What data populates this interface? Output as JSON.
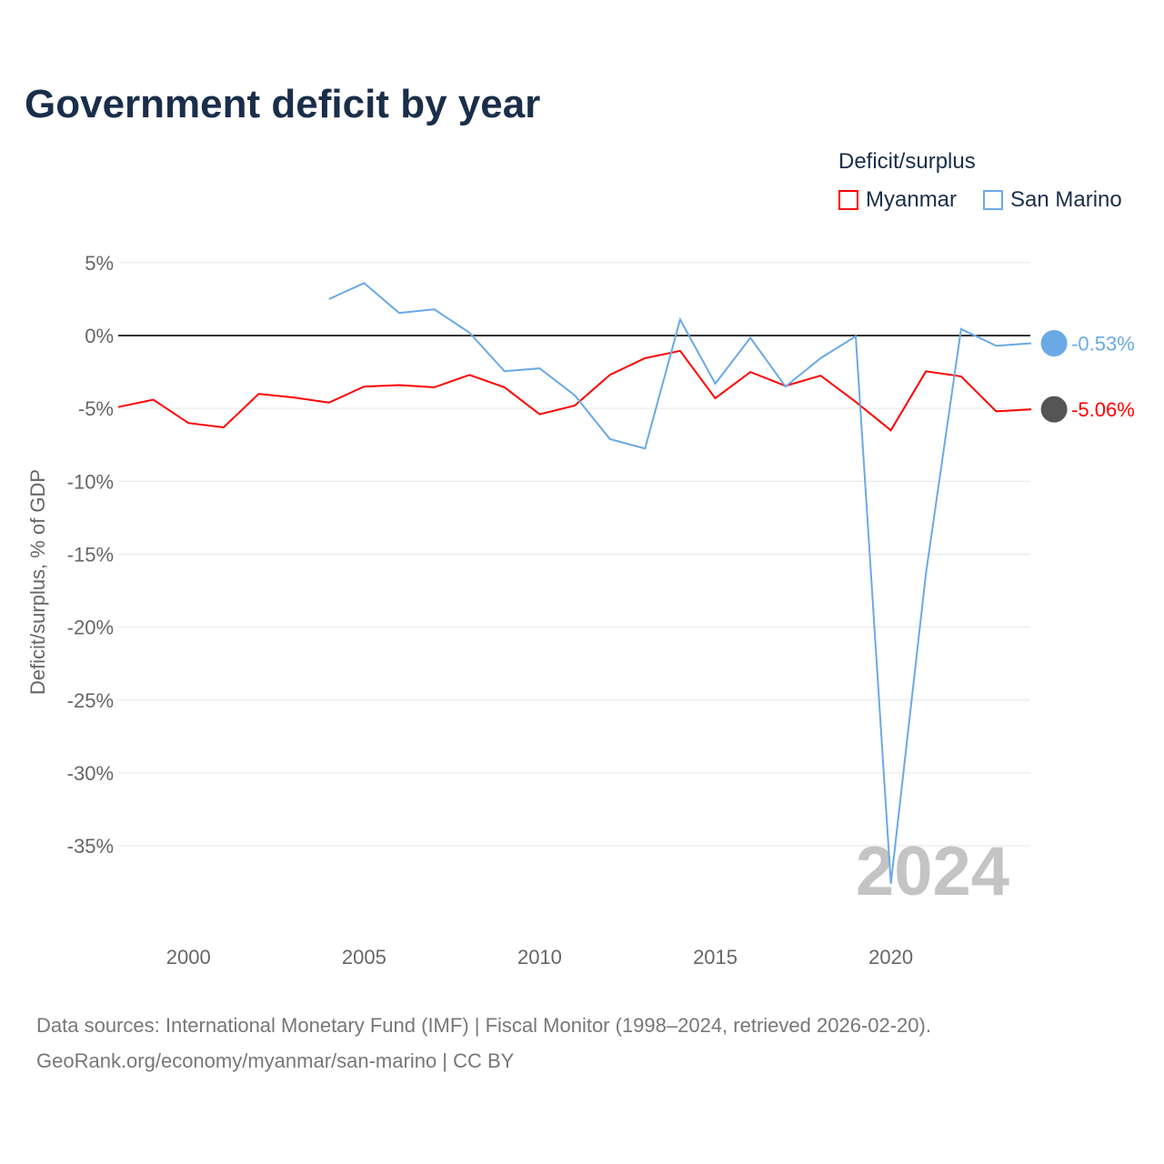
{
  "title": "Government deficit by year",
  "legend": {
    "title": "Deficit/surplus",
    "items": [
      {
        "name": "Myanmar",
        "color": "#ff0000"
      },
      {
        "name": "San Marino",
        "color": "#6aa9e6"
      }
    ]
  },
  "watermark_year": "2024",
  "source_line1": "Data sources: International Monetary Fund (IMF) | Fiscal Monitor (1998–2024, retrieved 2026-02-20).",
  "source_line2": "GeoRank.org/economy/myanmar/san-marino | CC BY",
  "chart_data": {
    "type": "line",
    "title": "Government deficit by year",
    "ylabel": "Deficit/surplus, % of GDP",
    "xlabel": "",
    "xlim": [
      1998,
      2024
    ],
    "ylim": [
      -40,
      6
    ],
    "yticks": [
      5,
      0,
      -5,
      -10,
      -15,
      -20,
      -25,
      -30,
      -35
    ],
    "ytick_labels": [
      "5%",
      "0%",
      "-5%",
      "-10%",
      "-15%",
      "-20%",
      "-25%",
      "-30%",
      "-35%"
    ],
    "xticks": [
      2000,
      2005,
      2010,
      2015,
      2020
    ],
    "grid": true,
    "legend_position": "top-right",
    "series": [
      {
        "name": "Myanmar",
        "color": "#ff0000",
        "end_label": "-5.06%",
        "x": [
          1998,
          1999,
          2000,
          2001,
          2002,
          2003,
          2004,
          2005,
          2006,
          2007,
          2008,
          2009,
          2010,
          2011,
          2012,
          2013,
          2014,
          2015,
          2016,
          2017,
          2018,
          2019,
          2020,
          2021,
          2022,
          2023,
          2024
        ],
        "values": [
          -4.9,
          -4.4,
          -6.0,
          -6.3,
          -4.0,
          -4.25,
          -4.6,
          -3.5,
          -3.4,
          -3.55,
          -2.7,
          -3.55,
          -5.4,
          -4.8,
          -2.7,
          -1.55,
          -1.05,
          -4.3,
          -2.5,
          -3.45,
          -2.75,
          -4.55,
          -6.5,
          -2.45,
          -2.8,
          -5.2,
          -5.06
        ]
      },
      {
        "name": "San Marino",
        "color": "#6aa9e6",
        "end_label": "-0.53%",
        "x": [
          2004,
          2005,
          2006,
          2007,
          2008,
          2009,
          2010,
          2011,
          2012,
          2013,
          2014,
          2015,
          2016,
          2017,
          2018,
          2019,
          2020,
          2021,
          2022,
          2023,
          2024
        ],
        "values": [
          2.5,
          3.6,
          1.55,
          1.8,
          0.2,
          -2.45,
          -2.25,
          -4.1,
          -7.1,
          -7.75,
          1.1,
          -3.3,
          -0.15,
          -3.5,
          -1.55,
          -0.05,
          -37.6,
          -16.3,
          0.45,
          -0.7,
          -0.53
        ]
      }
    ]
  }
}
